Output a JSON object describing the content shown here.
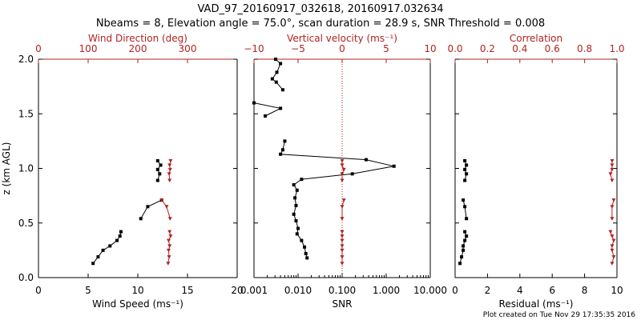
{
  "title_line1": "VAD_97_20160917_032618, 20160917.032634",
  "title_line2": "Nbeams = 8, Elevation angle = 75.0°, scan duration = 28.9 s, SNR Threshold = 0.008",
  "footer": "Plot created on Tue Nov 29 17:35:35 2016",
  "colors": {
    "primary": "#000000",
    "secondary": "#b22222"
  },
  "chart_data": [
    {
      "type": "line",
      "panel": "left",
      "ylabel": "z (km AGL)",
      "ylim": [
        0,
        2.0
      ],
      "yticks": [
        "0.0",
        "0.5",
        "1.0",
        "1.5",
        "2.0"
      ],
      "xlabel_bottom": "Wind Speed (ms⁻¹)",
      "xlim_bottom": [
        0,
        20
      ],
      "xticks_bottom": [
        "0",
        "5",
        "10",
        "15",
        "20"
      ],
      "xlabel_top": "Wind Direction (deg)",
      "xlim_top": [
        0,
        400
      ],
      "xticks_top": [
        "0",
        "100",
        "200",
        "300"
      ],
      "series": [
        {
          "axis": "bottom",
          "color": "#000000",
          "marker": "square",
          "points": [
            [
              12.0,
              1.07
            ],
            [
              12.3,
              1.03
            ],
            [
              12.0,
              0.99
            ],
            [
              12.2,
              0.95
            ],
            [
              12.0,
              0.89
            ],
            null,
            [
              12.4,
              0.71
            ],
            [
              11.0,
              0.65
            ],
            [
              10.3,
              0.54
            ],
            null,
            [
              8.3,
              0.42
            ],
            [
              8.2,
              0.38
            ],
            [
              7.9,
              0.34
            ],
            [
              7.2,
              0.29
            ],
            [
              6.5,
              0.25
            ],
            [
              6.0,
              0.19
            ],
            [
              5.5,
              0.13
            ]
          ]
        },
        {
          "axis": "top",
          "color": "#b22222",
          "marker": "down-triangle",
          "points": [
            [
              266,
              1.07
            ],
            [
              264,
              1.03
            ],
            [
              265,
              0.99
            ],
            [
              263,
              0.95
            ],
            [
              264,
              0.89
            ],
            null,
            [
              248,
              0.71
            ],
            [
              258,
              0.65
            ],
            [
              265,
              0.54
            ],
            null,
            [
              264,
              0.42
            ],
            [
              266,
              0.38
            ],
            [
              262,
              0.34
            ],
            [
              264,
              0.29
            ],
            [
              262,
              0.25
            ],
            [
              263,
              0.19
            ],
            [
              261,
              0.13
            ]
          ]
        }
      ]
    },
    {
      "type": "line",
      "panel": "middle",
      "xlabel_bottom": "SNR",
      "xscale_bottom": "log",
      "xlim_bottom": [
        0.001,
        10
      ],
      "xticks_bottom": [
        "0.001",
        "0.010",
        "0.100",
        "1.000",
        "10.000"
      ],
      "xlabel_top": "Vertical velocity (ms⁻¹)",
      "xlim_top": [
        -10,
        10
      ],
      "xticks_top": [
        "−10",
        "−5",
        "0",
        "5",
        "10"
      ],
      "vertical_reference_line": {
        "axis": "top",
        "value": 0,
        "style": "dotted",
        "color": "#b22222"
      },
      "ylim": [
        0,
        2.0
      ],
      "series": [
        {
          "axis": "bottom",
          "color": "#000000",
          "marker": "square",
          "points": [
            [
              0.0031,
              2.0
            ],
            [
              0.004,
              1.96
            ],
            [
              0.0033,
              1.88
            ],
            [
              0.0026,
              1.82
            ],
            [
              0.0032,
              1.79
            ],
            [
              0.0045,
              1.72
            ],
            null,
            [
              0.001,
              1.6
            ],
            [
              0.004,
              1.55
            ],
            [
              0.0018,
              1.48
            ],
            null,
            [
              0.005,
              1.25
            ],
            [
              0.0045,
              1.17
            ],
            [
              0.004,
              1.13
            ],
            [
              0.35,
              1.08
            ],
            [
              1.5,
              1.02
            ],
            [
              0.17,
              0.95
            ],
            [
              0.012,
              0.9
            ],
            [
              0.008,
              0.85
            ],
            [
              0.0095,
              0.8
            ],
            [
              0.0085,
              0.73
            ],
            [
              0.009,
              0.66
            ],
            [
              0.008,
              0.58
            ],
            [
              0.009,
              0.52
            ],
            [
              0.01,
              0.45
            ],
            [
              0.0095,
              0.4
            ],
            [
              0.012,
              0.34
            ],
            [
              0.014,
              0.28
            ],
            [
              0.015,
              0.22
            ],
            [
              0.016,
              0.18
            ]
          ]
        },
        {
          "axis": "top",
          "color": "#b22222",
          "marker": "down-triangle",
          "points": [
            [
              0,
              1.07
            ],
            [
              0,
              1.03
            ],
            [
              0.2,
              0.99
            ],
            [
              0,
              0.95
            ],
            [
              0,
              0.89
            ],
            null,
            [
              0.2,
              0.71
            ],
            [
              0,
              0.65
            ],
            [
              0,
              0.54
            ],
            null,
            [
              0,
              0.42
            ],
            [
              0,
              0.38
            ],
            [
              0,
              0.34
            ],
            [
              0,
              0.29
            ],
            [
              0,
              0.25
            ],
            [
              0,
              0.19
            ],
            [
              0,
              0.13
            ]
          ]
        }
      ]
    },
    {
      "type": "line",
      "panel": "right",
      "xlabel_bottom": "Residual (ms⁻¹)",
      "xlim_bottom": [
        0,
        10
      ],
      "xticks_bottom": [
        "0",
        "2",
        "4",
        "6",
        "8",
        "10"
      ],
      "xlabel_top": "Correlation",
      "xlim_top": [
        0,
        1
      ],
      "xticks_top": [
        "0.0",
        "0.2",
        "0.4",
        "0.6",
        "0.8",
        "1.0"
      ],
      "ylim": [
        0,
        2.0
      ],
      "series": [
        {
          "axis": "bottom",
          "color": "#000000",
          "marker": "square",
          "points": [
            [
              0.6,
              1.07
            ],
            [
              0.7,
              1.03
            ],
            [
              0.6,
              0.99
            ],
            [
              0.7,
              0.95
            ],
            [
              0.6,
              0.89
            ],
            null,
            [
              0.5,
              0.71
            ],
            [
              0.6,
              0.65
            ],
            [
              0.7,
              0.54
            ],
            null,
            [
              0.6,
              0.42
            ],
            [
              0.7,
              0.38
            ],
            [
              0.6,
              0.34
            ],
            [
              0.5,
              0.29
            ],
            [
              0.5,
              0.25
            ],
            [
              0.4,
              0.19
            ],
            [
              0.3,
              0.13
            ]
          ]
        },
        {
          "axis": "top",
          "color": "#b22222",
          "marker": "down-triangle",
          "points": [
            [
              0.97,
              1.07
            ],
            [
              0.97,
              1.03
            ],
            [
              0.97,
              0.99
            ],
            [
              0.96,
              0.95
            ],
            [
              0.97,
              0.89
            ],
            null,
            [
              0.98,
              0.71
            ],
            [
              0.97,
              0.65
            ],
            [
              0.97,
              0.54
            ],
            null,
            [
              0.96,
              0.42
            ],
            [
              0.97,
              0.38
            ],
            [
              0.98,
              0.34
            ],
            [
              0.97,
              0.29
            ],
            [
              0.97,
              0.25
            ],
            [
              0.98,
              0.19
            ],
            [
              0.97,
              0.13
            ]
          ]
        }
      ]
    }
  ]
}
